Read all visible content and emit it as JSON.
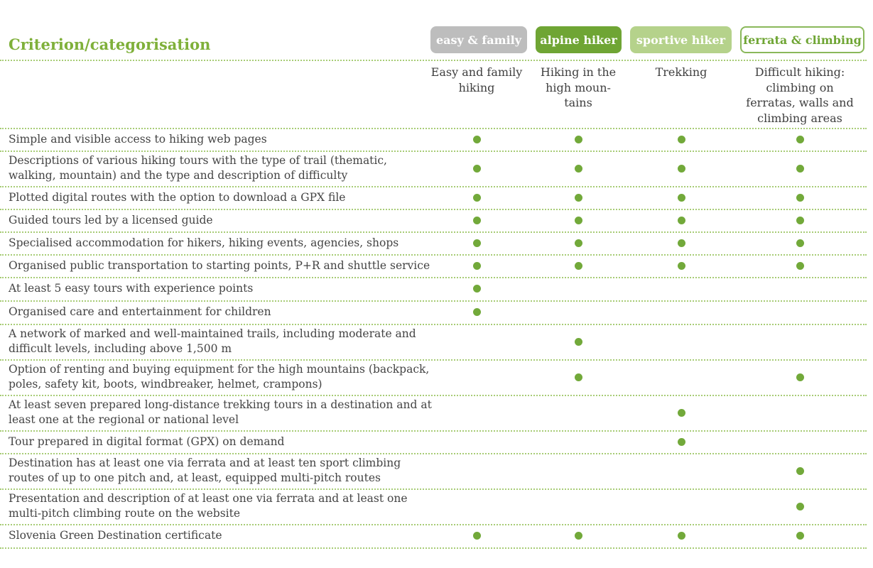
{
  "title": "Criterion/categorisation",
  "categories": [
    {
      "badge": "easy & family",
      "sub": "Easy and family hiking"
    },
    {
      "badge": "alpine hiker",
      "sub": "Hiking in the high moun-tains"
    },
    {
      "badge": "sportive hiker",
      "sub": "Trekking"
    },
    {
      "badge": "ferrata & climbing",
      "sub": "Difficult hiking: climbing on ferratas, walls and climbing areas"
    }
  ],
  "rows": [
    {
      "label": "Simple and visible access to hiking web pages",
      "marks": [
        true,
        true,
        true,
        true
      ]
    },
    {
      "label": "Descriptions of various hiking tours with the type of trail (thematic, walking, mountain) and the type and description of difficulty",
      "marks": [
        true,
        true,
        true,
        true
      ]
    },
    {
      "label": "Plotted digital routes with the option to download a GPX file",
      "marks": [
        true,
        true,
        true,
        true
      ]
    },
    {
      "label": "Guided tours led by a licensed guide",
      "marks": [
        true,
        true,
        true,
        true
      ]
    },
    {
      "label": "Specialised accommodation for hikers, hiking events, agencies, shops",
      "marks": [
        true,
        true,
        true,
        true
      ]
    },
    {
      "label": "Organised public transportation to starting points, P+R and shuttle service",
      "marks": [
        true,
        true,
        true,
        true
      ]
    },
    {
      "label": "At least 5 easy tours with experience points",
      "marks": [
        true,
        false,
        false,
        false
      ]
    },
    {
      "label": "Organised care and entertainment for children",
      "marks": [
        true,
        false,
        false,
        false
      ]
    },
    {
      "label": "A network of marked and well-maintained trails, including moderate and difficult levels, including above 1,500 m",
      "marks": [
        false,
        true,
        false,
        false
      ]
    },
    {
      "label": "Option of renting and buying equipment for the high mountains (backpack, poles, safety kit, boots, windbreaker, helmet, crampons)",
      "marks": [
        false,
        true,
        false,
        true
      ]
    },
    {
      "label": "At least seven prepared long-distance trekking tours in a destination and at least one at the regional or national level",
      "marks": [
        false,
        false,
        true,
        false
      ]
    },
    {
      "label": "Tour prepared in digital format (GPX) on demand",
      "marks": [
        false,
        false,
        true,
        false
      ]
    },
    {
      "label": "Destination has at least one via ferrata and at least ten sport climbing routes of up to one pitch and, at least, equipped multi-pitch routes",
      "marks": [
        false,
        false,
        false,
        true
      ]
    },
    {
      "label": "Presentation and description of at least one via ferrata and at least one multi-pitch climbing route on the website",
      "marks": [
        false,
        false,
        false,
        true
      ]
    },
    {
      "label": "Slovenia Green Destination certificate",
      "marks": [
        true,
        true,
        true,
        true
      ]
    }
  ]
}
